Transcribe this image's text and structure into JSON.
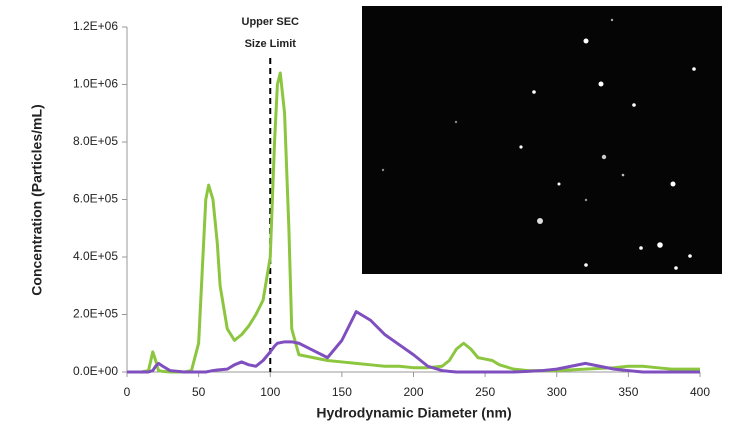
{
  "chart_data": {
    "type": "line",
    "x_label": "Hydrodynamic Diameter (nm)",
    "y_label": "Concentration (Particles/mL)",
    "annotation": {
      "text": [
        "Upper SEC",
        "Size Limit"
      ],
      "x": 100
    },
    "xlim": [
      0,
      400
    ],
    "xticks": [
      0,
      50,
      100,
      150,
      200,
      250,
      300,
      350,
      400
    ],
    "ylim": [
      0,
      1200000
    ],
    "yticks": [
      {
        "value": 0,
        "label": "0.0E+00"
      },
      {
        "value": 200000,
        "label": "2.0E+05"
      },
      {
        "value": 400000,
        "label": "4.0E+05"
      },
      {
        "value": 600000,
        "label": "6.0E+05"
      },
      {
        "value": 800000,
        "label": "8.0E+05"
      },
      {
        "value": 1000000,
        "label": "1.0E+06"
      },
      {
        "value": 1200000,
        "label": "1.2E+06"
      }
    ],
    "x": [
      0,
      10,
      15,
      18,
      20,
      22,
      25,
      30,
      40,
      45,
      50,
      53,
      55,
      57,
      60,
      63,
      65,
      70,
      75,
      80,
      85,
      90,
      95,
      100,
      103,
      105,
      107,
      110,
      113,
      115,
      120,
      130,
      140,
      150,
      160,
      170,
      180,
      190,
      200,
      210,
      220,
      225,
      230,
      235,
      240,
      245,
      250,
      255,
      260,
      270,
      280,
      290,
      300,
      320,
      340,
      350,
      360,
      370,
      380,
      400
    ],
    "series": [
      {
        "color": "#8cc63f",
        "values": [
          0,
          0,
          5000,
          70000,
          40000,
          5000,
          2000,
          0,
          0,
          5000,
          100000,
          400000,
          600000,
          650000,
          600000,
          450000,
          300000,
          150000,
          110000,
          130000,
          160000,
          200000,
          250000,
          400000,
          800000,
          1000000,
          1040000,
          900000,
          500000,
          150000,
          60000,
          50000,
          40000,
          35000,
          30000,
          25000,
          20000,
          20000,
          15000,
          15000,
          20000,
          40000,
          80000,
          100000,
          80000,
          50000,
          45000,
          40000,
          25000,
          10000,
          5000,
          5000,
          5000,
          10000,
          15000,
          20000,
          20000,
          15000,
          10000,
          10000
        ]
      },
      {
        "color": "#7f4fbf",
        "values": [
          0,
          0,
          0,
          5000,
          20000,
          30000,
          20000,
          5000,
          0,
          0,
          0,
          0,
          0,
          2000,
          5000,
          7000,
          8000,
          10000,
          25000,
          35000,
          25000,
          20000,
          40000,
          70000,
          90000,
          100000,
          102000,
          105000,
          105000,
          105000,
          100000,
          75000,
          50000,
          110000,
          210000,
          180000,
          130000,
          95000,
          60000,
          20000,
          5000,
          2000,
          0,
          0,
          0,
          0,
          0,
          0,
          0,
          0,
          2000,
          5000,
          10000,
          30000,
          10000,
          5000,
          0,
          0,
          0,
          0
        ]
      }
    ]
  }
}
